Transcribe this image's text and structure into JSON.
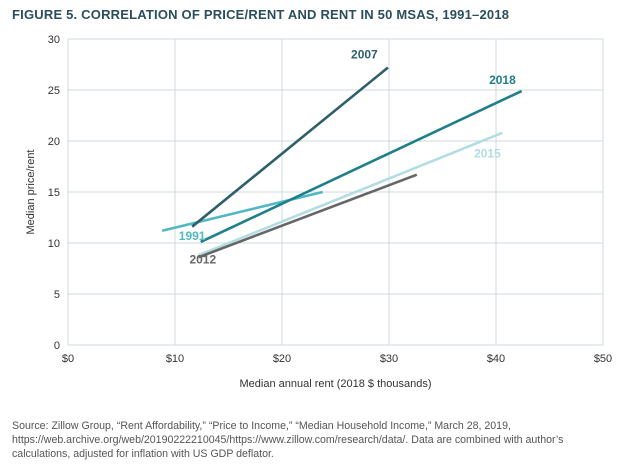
{
  "figure_title": "FIGURE 5. CORRELATION OF PRICE/RENT AND RENT IN 50 MSAS, 1991–2018",
  "source_note": "Source: Zillow Group, “Rent Affordability,” “Price to Income,” “Median Household Income,” March 28, 2019, https://web.archive.org/web/20190222210045/https://www.zillow.com/research/data/. Data are combined with author’s calculations, adjusted for inflation with US GDP deflator.",
  "colors": {
    "grid": "#cfd8dc",
    "s1991": "#4fb8c2",
    "s2007": "#2e5f6b",
    "s2012": "#666666",
    "s2015": "#b2dde2",
    "s2018": "#1f7f8a"
  },
  "chart_data": {
    "type": "line",
    "title": "FIGURE 5. CORRELATION OF PRICE/RENT AND RENT IN 50 MSAS, 1991–2018",
    "xlabel": "Median annual rent (2018 $ thousands)",
    "ylabel": "Median price/rent",
    "xlim": [
      0,
      50
    ],
    "ylim": [
      0,
      30
    ],
    "x_ticks": [
      {
        "value": 0,
        "label": "$0"
      },
      {
        "value": 10,
        "label": "$10"
      },
      {
        "value": 20,
        "label": "$20"
      },
      {
        "value": 30,
        "label": "$30"
      },
      {
        "value": 40,
        "label": "$40"
      },
      {
        "value": 50,
        "label": "$50"
      }
    ],
    "y_ticks": [
      {
        "value": 0,
        "label": "0"
      },
      {
        "value": 5,
        "label": "5"
      },
      {
        "value": 10,
        "label": "10"
      },
      {
        "value": 15,
        "label": "15"
      },
      {
        "value": 20,
        "label": "20"
      },
      {
        "value": 25,
        "label": "25"
      },
      {
        "value": 30,
        "label": "30"
      }
    ],
    "grid": true,
    "legend": "direct labels on lines",
    "series": [
      {
        "name": "1991",
        "color": "#4fb8c2",
        "x": [
          8.8,
          23.8
        ],
        "y": [
          11.2,
          15.0
        ],
        "label_at": [
          11.6,
          10.3
        ]
      },
      {
        "name": "2015",
        "color": "#b2dde2",
        "x": [
          12.2,
          40.6
        ],
        "y": [
          8.8,
          20.8
        ],
        "label_at": [
          39.2,
          18.4
        ]
      },
      {
        "name": "2012",
        "color": "#666666",
        "x": [
          12.2,
          32.6
        ],
        "y": [
          8.6,
          16.7
        ],
        "label_at": [
          12.6,
          8.0
        ]
      },
      {
        "name": "2018",
        "color": "#1f7f8a",
        "x": [
          12.4,
          42.4
        ],
        "y": [
          10.1,
          24.9
        ],
        "label_at": [
          40.6,
          25.6
        ]
      },
      {
        "name": "2007",
        "color": "#2e5f6b",
        "x": [
          11.6,
          29.9
        ],
        "y": [
          11.6,
          27.2
        ],
        "label_at": [
          27.7,
          28.1
        ]
      }
    ]
  }
}
